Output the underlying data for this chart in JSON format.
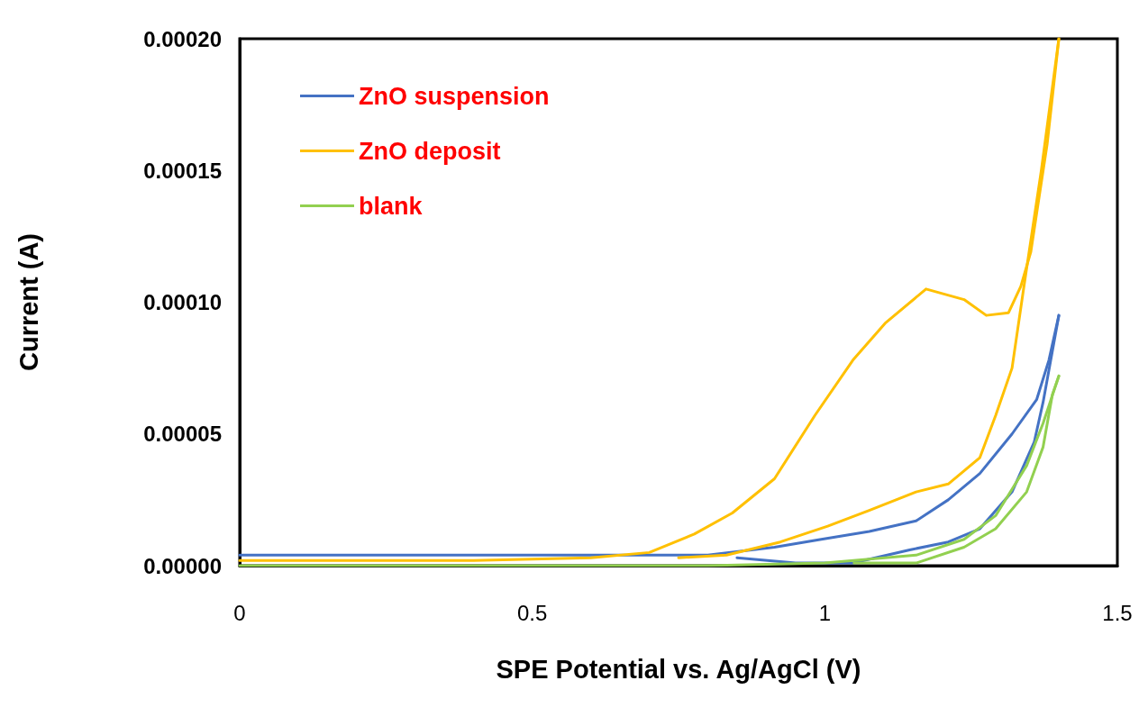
{
  "chart_data": {
    "type": "line",
    "xlabel": "SPE Potential vs. Ag/AgCl (V)",
    "ylabel": "Current (A)",
    "xlim": [
      0,
      1.5
    ],
    "xticks": [
      0,
      0.5,
      1,
      1.5
    ],
    "ylim": [
      0,
      0.0002
    ],
    "yticks": [
      {
        "value": 0,
        "label": "0.00000"
      },
      {
        "value": 5e-05,
        "label": "0.00005"
      },
      {
        "value": 0.0001,
        "label": "0.00010"
      },
      {
        "value": 0.00015,
        "label": "0.00015"
      },
      {
        "value": 0.0002,
        "label": "0.00020"
      }
    ],
    "grid": false,
    "legend": "top left",
    "marker": "none",
    "line_style": "solid",
    "series": [
      {
        "name": "ZnO suspension",
        "color": "#4472c4",
        "x": [
          0,
          0.2,
          0.4,
          0.6,
          0.8,
          0.914,
          0.994,
          1.076,
          1.156,
          1.211,
          1.265,
          1.32,
          1.362,
          1.383,
          1.4
        ],
        "values": [
          4e-06,
          4e-06,
          4e-06,
          4e-06,
          4e-06,
          7e-06,
          1e-05,
          1.3e-05,
          1.7e-05,
          2.5e-05,
          3.5e-05,
          5e-05,
          6.3e-05,
          7.8e-05,
          9.5e-05
        ]
      },
      {
        "color": "#4472c4",
        "x": [
          1.4,
          1.373,
          1.358,
          1.32,
          1.265,
          1.211,
          1.145,
          1.048,
          0.95,
          0.85
        ],
        "values": [
          9.5e-05,
          6.2e-05,
          4.7e-05,
          2.8e-05,
          1.4e-05,
          9e-06,
          6e-06,
          1e-06,
          1e-06,
          3e-06
        ]
      },
      {
        "name": "ZnO deposit",
        "color": "#ffc000",
        "x": [
          0,
          0.2,
          0.4,
          0.6,
          0.7,
          0.777,
          0.842,
          0.914,
          0.983,
          1.048,
          1.103,
          1.173,
          1.238,
          1.276,
          1.314,
          1.335,
          1.352,
          1.38,
          1.4
        ],
        "values": [
          2e-06,
          2e-06,
          2e-06,
          3e-06,
          5e-06,
          1.2e-05,
          2e-05,
          3.3e-05,
          5.7e-05,
          7.8e-05,
          9.2e-05,
          0.000105,
          0.000101,
          9.5e-05,
          9.6e-05,
          0.000106,
          0.000119,
          0.00016,
          0.0002
        ]
      },
      {
        "color": "#ffc000",
        "x": [
          1.4,
          1.37,
          1.341,
          1.32,
          1.292,
          1.265,
          1.211,
          1.156,
          1.076,
          1.005,
          0.924,
          0.832,
          0.75
        ],
        "values": [
          0.0002,
          0.00015,
          0.000107,
          7.5e-05,
          5.7e-05,
          4.1e-05,
          3.1e-05,
          2.8e-05,
          2.1e-05,
          1.5e-05,
          9e-06,
          4e-06,
          3e-06
        ]
      },
      {
        "name": "blank",
        "color": "#92d050",
        "x": [
          0,
          0.2,
          0.4,
          0.6,
          0.8,
          1.0,
          1.156,
          1.238,
          1.292,
          1.345,
          1.373,
          1.4
        ],
        "values": [
          0,
          0,
          0,
          0,
          0,
          1e-06,
          4e-06,
          1e-05,
          1.9e-05,
          3.8e-05,
          5.4e-05,
          7.2e-05
        ]
      },
      {
        "color": "#92d050",
        "x": [
          1.4,
          1.389,
          1.373,
          1.345,
          1.292,
          1.238,
          1.156,
          1.05
        ],
        "values": [
          7.2e-05,
          6.5e-05,
          4.5e-05,
          2.8e-05,
          1.4e-05,
          7e-06,
          1e-06,
          1e-06
        ]
      }
    ]
  }
}
